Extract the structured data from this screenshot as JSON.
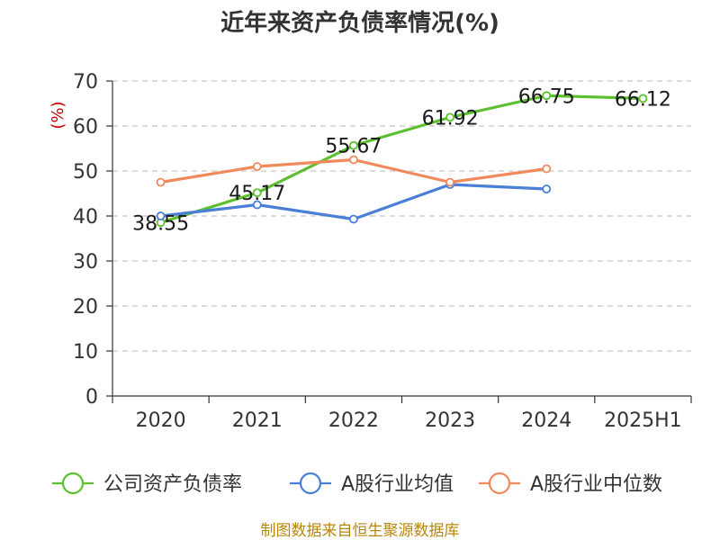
{
  "chart_data": {
    "type": "line",
    "title": "近年来资产负债率情况(%)",
    "ylabel": "(%)",
    "xlabel": "",
    "ylim": [
      0,
      70
    ],
    "yticks": [
      0,
      10,
      20,
      30,
      40,
      50,
      60,
      70
    ],
    "categories": [
      "2020",
      "2021",
      "2022",
      "2023",
      "2024",
      "2025H1"
    ],
    "grid": true,
    "legend_position": "bottom",
    "series": [
      {
        "name": "公司资产负债率",
        "color": "#5cc02e",
        "values": [
          38.55,
          45.17,
          55.67,
          61.92,
          66.75,
          66.12
        ],
        "labels": [
          "38.55",
          "45.17",
          "55.67",
          "61.92",
          "66.75",
          "66.12"
        ]
      },
      {
        "name": "A股行业均值",
        "color": "#4a7fd6",
        "values": [
          40.0,
          42.5,
          39.3,
          47.0,
          46.0,
          null
        ]
      },
      {
        "name": "A股行业中位数",
        "color": "#f08a5c",
        "values": [
          47.5,
          51.0,
          52.5,
          47.5,
          50.5,
          null
        ]
      }
    ],
    "source": "制图数据来自恒生聚源数据库"
  }
}
